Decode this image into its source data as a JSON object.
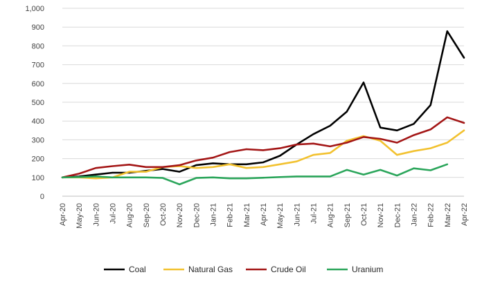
{
  "chart_data": {
    "type": "line",
    "title": "",
    "xlabel": "",
    "ylabel": "",
    "ylim": [
      0,
      1000
    ],
    "yticks": [
      0,
      100,
      200,
      300,
      400,
      500,
      600,
      700,
      800,
      900,
      1000
    ],
    "ytick_labels": [
      "0",
      "100",
      "200",
      "300",
      "400",
      "500",
      "600",
      "700",
      "800",
      "900",
      "1,000"
    ],
    "grid": "horizontal",
    "legend_position": "bottom",
    "categories": [
      "Apr-20",
      "May-20",
      "Jun-20",
      "Jul-20",
      "Aug-20",
      "Sep-20",
      "Oct-20",
      "Nov-20",
      "Dec-20",
      "Jan-21",
      "Feb-21",
      "Mar-21",
      "Apr-21",
      "May-21",
      "Jun-21",
      "Jul-21",
      "Aug-21",
      "Sep-21",
      "Oct-21",
      "Nov-21",
      "Dec-21",
      "Jan-22",
      "Feb-22",
      "Mar-22",
      "Apr-22"
    ],
    "series": [
      {
        "name": "Coal",
        "color": "#000000",
        "values": [
          100,
          105,
          115,
          125,
          125,
          135,
          145,
          130,
          165,
          175,
          170,
          170,
          180,
          215,
          275,
          330,
          375,
          450,
          605,
          365,
          350,
          385,
          485,
          878,
          737
        ]
      },
      {
        "name": "Natural Gas",
        "color": "#f2c12e",
        "values": [
          100,
          100,
          95,
          100,
          130,
          130,
          155,
          160,
          150,
          155,
          170,
          150,
          155,
          170,
          185,
          220,
          230,
          295,
          320,
          295,
          220,
          240,
          255,
          285,
          350
        ]
      },
      {
        "name": "Crude Oil",
        "color": "#a31515",
        "values": [
          100,
          120,
          150,
          160,
          168,
          155,
          155,
          165,
          190,
          205,
          235,
          250,
          245,
          255,
          275,
          280,
          265,
          285,
          315,
          305,
          285,
          325,
          355,
          420,
          390
        ]
      },
      {
        "name": "Uranium",
        "color": "#2aa55a",
        "values": [
          100,
          102,
          105,
          100,
          100,
          100,
          97,
          63,
          97,
          100,
          95,
          95,
          98,
          102,
          105,
          105,
          105,
          140,
          115,
          140,
          110,
          148,
          138,
          170,
          null
        ]
      }
    ]
  }
}
